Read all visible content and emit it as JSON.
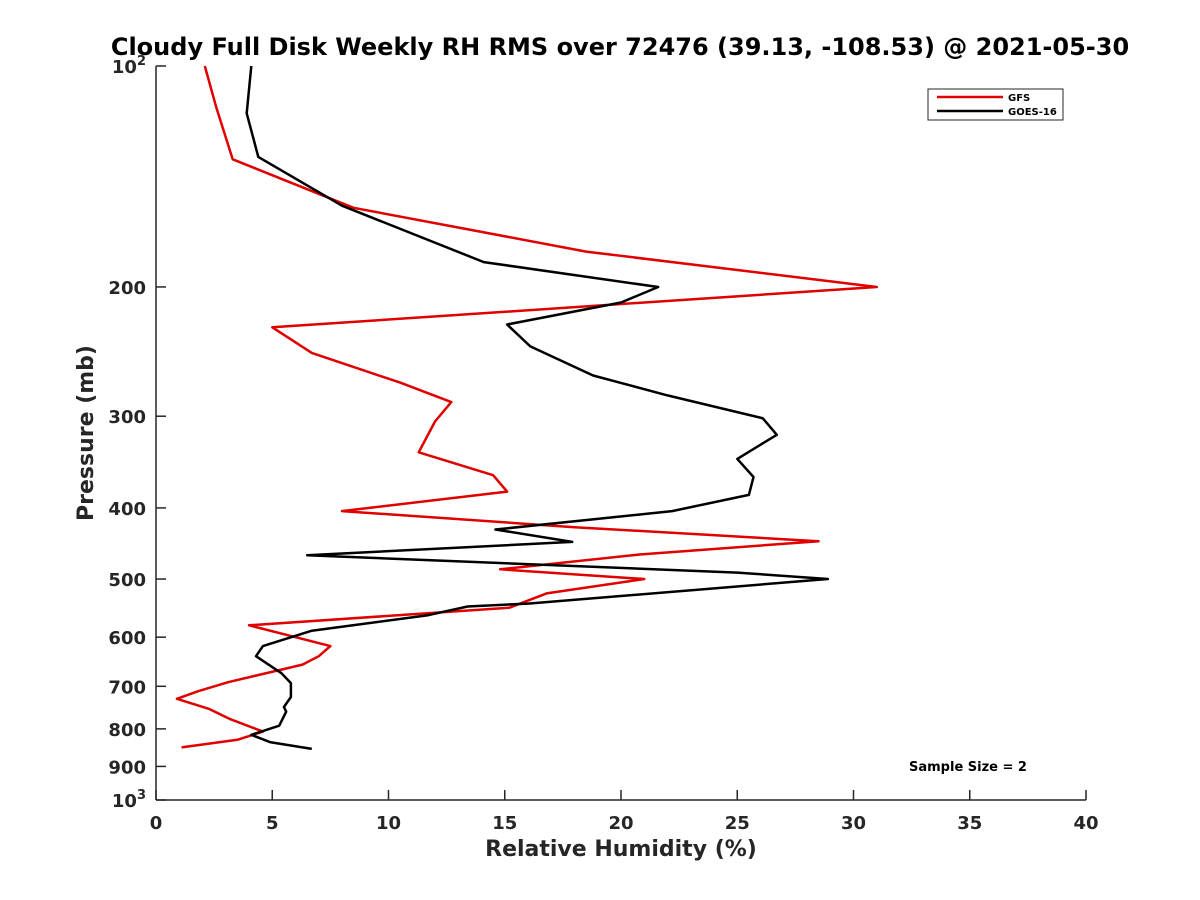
{
  "chart_data": {
    "type": "line",
    "title": "Cloudy Full Disk Weekly RH RMS over 72476 (39.13, -108.53) @ 2021-05-30",
    "xlabel": "Relative Humidity (%)",
    "ylabel": "Pressure (mb)",
    "xlim": [
      0,
      40
    ],
    "ylim": [
      1000,
      100
    ],
    "y_scale": "log",
    "y_reversed": true,
    "grid": false,
    "legend_placement": "top-right",
    "x_ticks": [
      "0",
      "5",
      "10",
      "15",
      "20",
      "25",
      "30",
      "35",
      "40"
    ],
    "y_ticks": [
      {
        "value": 100,
        "base": "10",
        "exp": "2"
      },
      {
        "value": 200,
        "label": "200"
      },
      {
        "value": 300,
        "label": "300"
      },
      {
        "value": 400,
        "label": "400"
      },
      {
        "value": 500,
        "label": "500"
      },
      {
        "value": 600,
        "label": "600"
      },
      {
        "value": 700,
        "label": "700"
      },
      {
        "value": 800,
        "label": "800"
      },
      {
        "value": 900,
        "label": "900"
      },
      {
        "value": 1000,
        "base": "10",
        "exp": "3"
      }
    ],
    "series": [
      {
        "name": "GFS",
        "color": "#e00000",
        "points": [
          [
            2.1,
            100
          ],
          [
            2.6,
            114
          ],
          [
            3.3,
            134
          ],
          [
            8.5,
            156
          ],
          [
            18.5,
            179
          ],
          [
            31.0,
            200
          ],
          [
            5.0,
            227
          ],
          [
            6.7,
            246
          ],
          [
            10.5,
            270
          ],
          [
            12.7,
            287
          ],
          [
            12.0,
            305
          ],
          [
            11.3,
            336
          ],
          [
            14.5,
            361
          ],
          [
            15.1,
            380
          ],
          [
            8.0,
            404
          ],
          [
            18.0,
            425
          ],
          [
            28.5,
            444
          ],
          [
            20.8,
            463
          ],
          [
            14.8,
            485
          ],
          [
            21.0,
            500
          ],
          [
            16.8,
            523
          ],
          [
            15.2,
            547
          ],
          [
            4.0,
            578
          ],
          [
            7.5,
            617
          ],
          [
            7.0,
            637
          ],
          [
            6.3,
            654
          ],
          [
            3.1,
            691
          ],
          [
            1.8,
            711
          ],
          [
            0.9,
            728
          ],
          [
            2.3,
            752
          ],
          [
            3.2,
            776
          ],
          [
            4.6,
            807
          ],
          [
            3.5,
            828
          ],
          [
            1.1,
            848
          ]
        ]
      },
      {
        "name": "GOES-16",
        "color": "#000000",
        "points": [
          [
            4.1,
            100
          ],
          [
            3.9,
            116
          ],
          [
            4.4,
            133
          ],
          [
            8.0,
            155
          ],
          [
            14.1,
            185
          ],
          [
            21.6,
            200
          ],
          [
            20.0,
            210
          ],
          [
            15.1,
            225
          ],
          [
            16.1,
            241
          ],
          [
            18.8,
            264
          ],
          [
            22.0,
            281
          ],
          [
            26.1,
            302
          ],
          [
            26.7,
            318
          ],
          [
            25.0,
            343
          ],
          [
            25.7,
            363
          ],
          [
            25.5,
            384
          ],
          [
            22.2,
            404
          ],
          [
            14.6,
            428
          ],
          [
            17.9,
            445
          ],
          [
            6.5,
            464
          ],
          [
            25.0,
            490
          ],
          [
            28.9,
            500
          ],
          [
            16.0,
            540
          ],
          [
            13.4,
            545
          ],
          [
            11.7,
            560
          ],
          [
            6.7,
            588
          ],
          [
            4.6,
            617
          ],
          [
            4.3,
            637
          ],
          [
            5.4,
            672
          ],
          [
            5.8,
            693
          ],
          [
            5.8,
            724
          ],
          [
            5.5,
            747
          ],
          [
            5.6,
            758
          ],
          [
            5.3,
            792
          ],
          [
            4.1,
            815
          ],
          [
            4.9,
            834
          ],
          [
            6.7,
            852
          ]
        ]
      }
    ],
    "legend": [
      {
        "label": "GFS",
        "color": "#e00000"
      },
      {
        "label": "GOES-16",
        "color": "#000000"
      }
    ],
    "annotation": "Sample Size = 2"
  }
}
